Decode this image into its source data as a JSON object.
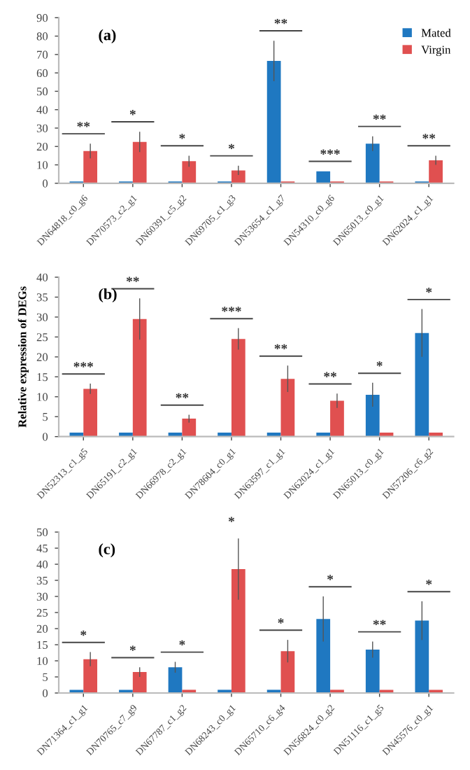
{
  "chart_data": [
    {
      "type": "bar",
      "title": "(a)",
      "categories": [
        "DN64818_c0_g6",
        "DN70573_c2_g1",
        "DN60391_c5_g2",
        "DN69705_c1_g3",
        "DN53654_c1_g7",
        "DN54310_c0_g6",
        "DN65013_c0_g1",
        "DN62024_c1_g1"
      ],
      "series": [
        {
          "name": "Mated",
          "color": "#1f78c1",
          "values": [
            1,
            1,
            1,
            1,
            66.5,
            6.5,
            21.5,
            1
          ],
          "errors": [
            null,
            null,
            null,
            null,
            11,
            null,
            4,
            null
          ]
        },
        {
          "name": "Virgin",
          "color": "#e05050",
          "values": [
            17.5,
            22.5,
            12,
            7,
            1,
            1,
            1,
            12.5
          ],
          "errors": [
            4,
            5.5,
            3,
            2.5,
            null,
            null,
            null,
            2.5
          ]
        }
      ],
      "ylim": [
        0,
        90
      ],
      "yticks": [
        0,
        10,
        20,
        30,
        40,
        50,
        60,
        70,
        80,
        90
      ],
      "legend": "top right",
      "grid": false,
      "annotations": [
        "**",
        "*",
        "*",
        "*",
        "**",
        "***",
        "**",
        "**"
      ]
    },
    {
      "type": "bar",
      "title": "(b)",
      "ylabel": "Relative expression of DEGs",
      "categories": [
        "DN52313_c1_g5",
        "DN65191_c2_g1",
        "DN66978_c2_g1",
        "DN78604_c0_g1",
        "DN63597_c1_g1",
        "DN62024_c1_g1",
        "DN65013_c0_g1",
        "DN57206_c6_g2"
      ],
      "series": [
        {
          "color": "#1f78c1",
          "values": [
            1,
            1,
            1,
            1,
            1,
            1,
            10.5,
            26
          ],
          "errors": [
            null,
            null,
            null,
            null,
            null,
            null,
            3,
            6
          ]
        },
        {
          "color": "#e05050",
          "values": [
            12,
            29.5,
            4.5,
            24.5,
            14.5,
            9,
            1,
            1
          ],
          "errors": [
            1.3,
            5.2,
            1,
            2.7,
            3.3,
            1.8,
            null,
            null
          ]
        }
      ],
      "ylim": [
        0,
        40
      ],
      "yticks": [
        0,
        5,
        10,
        15,
        20,
        25,
        30,
        35,
        40
      ],
      "grid": false,
      "annotations": [
        "***",
        "**",
        "**",
        "***",
        "**",
        "**",
        "*",
        "*"
      ]
    },
    {
      "type": "bar",
      "title": "(c)",
      "categories": [
        "DN71364_c1_g1",
        "DN70765_c7_g9",
        "DN67787_c1_g2",
        "DN68243_c0_g1",
        "DN65710_c6_g4",
        "DN56824_c0_g2",
        "DN51116_c1_g5",
        "DN45576_c0_g1"
      ],
      "series": [
        {
          "color": "#1f78c1",
          "values": [
            1,
            1,
            8,
            1,
            1,
            23,
            13.5,
            22.5
          ],
          "errors": [
            null,
            null,
            1.7,
            null,
            null,
            7,
            2.5,
            6
          ]
        },
        {
          "color": "#e05050",
          "values": [
            10.5,
            6.5,
            1,
            38.5,
            13,
            1,
            1,
            1
          ],
          "errors": [
            2.2,
            1.5,
            null,
            9.5,
            3.5,
            null,
            null,
            null
          ]
        }
      ],
      "ylim": [
        0,
        50
      ],
      "yticks": [
        0,
        5,
        10,
        15,
        20,
        25,
        30,
        35,
        40,
        45,
        50
      ],
      "grid": false,
      "annotations": [
        "*",
        "*",
        "*",
        "*",
        "*",
        "*",
        "**",
        "*"
      ]
    }
  ]
}
